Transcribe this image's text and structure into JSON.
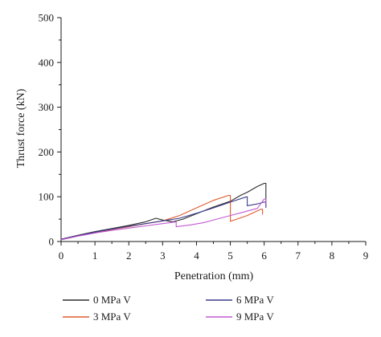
{
  "chart_data": {
    "type": "line",
    "xlabel": "Penetration (mm)",
    "ylabel": "Thrust force (kN)",
    "xlim": [
      0,
      9
    ],
    "ylim": [
      0,
      500
    ],
    "x_ticks": [
      0,
      1,
      2,
      3,
      4,
      5,
      6,
      7,
      8,
      9
    ],
    "y_ticks": [
      0,
      100,
      200,
      300,
      400,
      500
    ],
    "grid": false,
    "legend_position": "bottom",
    "series": [
      {
        "name": "0 MPa V",
        "color": "#2b2b2b",
        "x": [
          0,
          0.5,
          1.0,
          1.5,
          2.0,
          2.5,
          2.8,
          3.0,
          3.3,
          3.6,
          4.0,
          4.5,
          5.0,
          5.3,
          5.5,
          5.8,
          6.0,
          6.05,
          6.05
        ],
        "y": [
          5,
          14,
          22,
          29,
          36,
          44,
          52,
          48,
          44,
          50,
          62,
          77,
          90,
          103,
          110,
          123,
          130,
          130,
          80
        ]
      },
      {
        "name": "3 MPa V",
        "color": "#e05a2b",
        "x": [
          0,
          0.5,
          1.0,
          1.5,
          2.0,
          2.5,
          3.0,
          3.5,
          4.0,
          4.5,
          4.95,
          5.0,
          5.0,
          5.5,
          5.9,
          5.95,
          5.95
        ],
        "y": [
          4,
          13,
          20,
          27,
          33,
          40,
          46,
          58,
          75,
          92,
          103,
          103,
          45,
          58,
          72,
          72,
          60
        ]
      },
      {
        "name": "6 MPa V",
        "color": "#3a3a8c",
        "x": [
          0,
          0.5,
          1.0,
          1.5,
          2.0,
          2.5,
          3.0,
          3.5,
          4.0,
          4.5,
          5.0,
          5.4,
          5.5,
          5.5,
          5.8,
          6.0,
          6.05,
          6.05
        ],
        "y": [
          5,
          13,
          21,
          28,
          34,
          40,
          46,
          52,
          63,
          75,
          88,
          98,
          100,
          80,
          84,
          88,
          88,
          75
        ]
      },
      {
        "name": "9 MPa V",
        "color": "#c05ad0",
        "x": [
          0,
          0.5,
          1.0,
          1.5,
          2.0,
          2.5,
          3.0,
          3.4,
          3.4,
          3.8,
          4.2,
          4.6,
          5.0,
          5.4,
          5.8,
          6.0,
          6.05,
          6.05
        ],
        "y": [
          4,
          12,
          19,
          25,
          30,
          35,
          40,
          44,
          33,
          37,
          42,
          50,
          58,
          66,
          74,
          95,
          95,
          82
        ]
      }
    ]
  }
}
